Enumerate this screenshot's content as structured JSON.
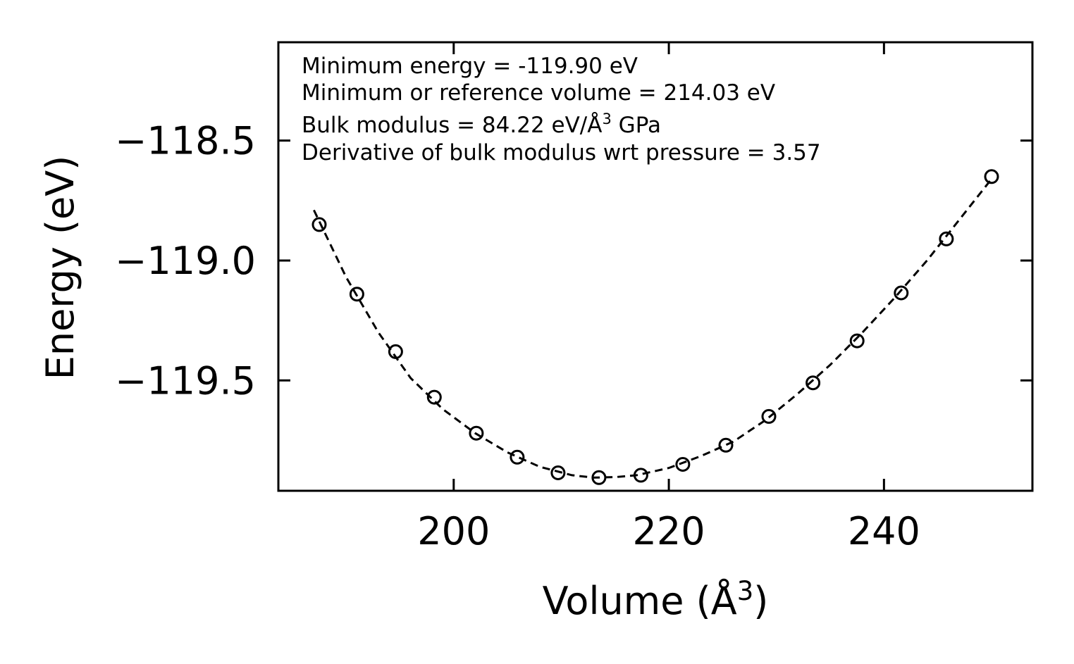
{
  "chart_data": {
    "type": "scatter",
    "title": "",
    "xlabel": "Volume (Å",
    "xlabel_sup": "3",
    "xlabel_end": ")",
    "ylabel": "Energy (eV)",
    "xlim": [
      183.7,
      253.8
    ],
    "ylim": [
      -119.96,
      -118.09
    ],
    "xticks": [
      200,
      220,
      240
    ],
    "xtick_labels": [
      "200",
      "220",
      "240"
    ],
    "yticks": [
      -118.5,
      -119.0,
      -119.5
    ],
    "ytick_labels": [
      "−118.5",
      "−119.0",
      "−119.5"
    ],
    "grid": false,
    "series": [
      {
        "name": "data",
        "style": "open-circle",
        "x": [
          187.5,
          191.0,
          194.6,
          198.2,
          202.1,
          205.9,
          209.7,
          213.5,
          217.4,
          221.3,
          225.3,
          229.3,
          233.4,
          237.5,
          241.6,
          245.8,
          250.0
        ],
        "y": [
          -118.85,
          -119.14,
          -119.38,
          -119.57,
          -119.72,
          -119.82,
          -119.885,
          -119.905,
          -119.895,
          -119.85,
          -119.77,
          -119.65,
          -119.51,
          -119.335,
          -119.135,
          -118.91,
          -118.65
        ]
      },
      {
        "name": "fit",
        "style": "dashed-line",
        "x": [
          187.0,
          190.0,
          193.0,
          196.0,
          199.0,
          202.0,
          205.0,
          208.0,
          211.0,
          213.0,
          215.0,
          217.0,
          220.0,
          223.0,
          226.0,
          229.0,
          232.0,
          235.0,
          238.0,
          241.0,
          244.0,
          247.0,
          250.0
        ],
        "y": [
          -118.79,
          -119.07,
          -119.3,
          -119.49,
          -119.62,
          -119.72,
          -119.8,
          -119.86,
          -119.895,
          -119.905,
          -119.903,
          -119.895,
          -119.865,
          -119.815,
          -119.755,
          -119.665,
          -119.555,
          -119.435,
          -119.3,
          -119.155,
          -119.0,
          -118.83,
          -118.66
        ]
      }
    ],
    "annotations": [
      "Minimum energy = -119.90 eV",
      "Minimum or reference volume = 214.03 eV",
      "Bulk modulus = 84.22 eV/Å",
      "Derivative of bulk modulus wrt pressure = 3.57"
    ],
    "annotation_bulk_sup": "3",
    "annotation_bulk_unit": " GPa"
  }
}
